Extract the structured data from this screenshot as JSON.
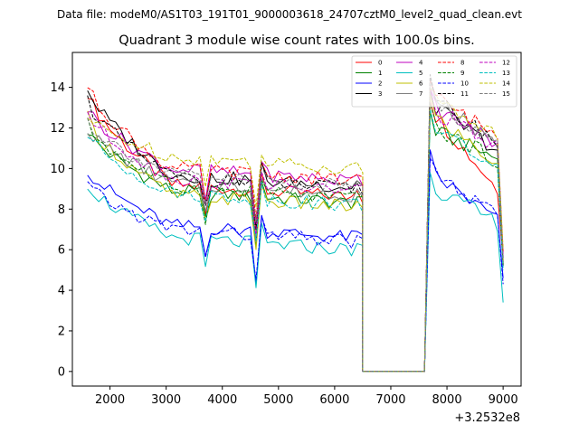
{
  "header": {
    "data_file": "Data file: modeM0/AS1T03_191T01_9000003618_24707cztM0_level2_quad_clean.evt"
  },
  "chart_data": {
    "type": "line",
    "title": "Quadrant 3 module wise count rates with 100.0s bins.",
    "xlabel": "",
    "ylabel": "",
    "x_offset_label": "+3.2532e8",
    "xlim": [
      1330,
      9320
    ],
    "ylim": [
      -0.72,
      15.72
    ],
    "x_ticks": [
      2000,
      3000,
      4000,
      5000,
      6000,
      7000,
      8000,
      9000
    ],
    "x_tick_labels": [
      "2000",
      "3000",
      "4000",
      "5000",
      "6000",
      "7000",
      "8000",
      "9000"
    ],
    "y_ticks": [
      0,
      2,
      4,
      6,
      8,
      10,
      12,
      14
    ],
    "y_tick_labels": [
      "0",
      "2",
      "4",
      "6",
      "8",
      "10",
      "12",
      "14"
    ],
    "legend_location": "upper right",
    "legend_columns": 4,
    "series": [
      {
        "name": "0",
        "color": "#ff0000",
        "dash": "solid",
        "base": 8.6,
        "first": 13.8,
        "post": 12.6,
        "late": 9.0,
        "end": 5.5
      },
      {
        "name": "1",
        "color": "#008000",
        "dash": "solid",
        "base": 8.3,
        "first": 11.9,
        "post": 11.8,
        "late": 10.5,
        "end": 5.3
      },
      {
        "name": "2",
        "color": "#0000ff",
        "dash": "solid",
        "base": 6.6,
        "first": 10.0,
        "post": 9.6,
        "late": 7.5,
        "end": 4.6
      },
      {
        "name": "3",
        "color": "#000000",
        "dash": "solid",
        "base": 9.1,
        "first": 14.0,
        "post": 13.0,
        "late": 10.9,
        "end": 5.2
      },
      {
        "name": "4",
        "color": "#bf00bf",
        "dash": "solid",
        "base": 9.4,
        "first": 13.0,
        "post": 13.0,
        "late": 11.2,
        "end": 5.6
      },
      {
        "name": "5",
        "color": "#00bfbf",
        "dash": "solid",
        "base": 6.0,
        "first": 9.3,
        "post": 9.0,
        "late": 7.3,
        "end": 3.4
      },
      {
        "name": "6",
        "color": "#bfbf00",
        "dash": "solid",
        "base": 8.1,
        "first": 12.5,
        "post": 12.5,
        "late": 10.2,
        "end": 5.4
      },
      {
        "name": "7",
        "color": "#808080",
        "dash": "solid",
        "base": 8.7,
        "first": 12.0,
        "post": 13.5,
        "late": 11.0,
        "end": 5.6
      },
      {
        "name": "8",
        "color": "#ff0000",
        "dash": "dashed",
        "base": 9.4,
        "first": 14.1,
        "post": 13.5,
        "late": 11.6,
        "end": 5.9
      },
      {
        "name": "9",
        "color": "#008000",
        "dash": "dashed",
        "base": 8.5,
        "first": 12.2,
        "post": 12.0,
        "late": 10.4,
        "end": 5.2
      },
      {
        "name": "10",
        "color": "#0000ff",
        "dash": "dashed",
        "base": 6.4,
        "first": 9.2,
        "post": 9.7,
        "late": 7.6,
        "end": 4.3
      },
      {
        "name": "11",
        "color": "#000000",
        "dash": "dashed",
        "base": 9.0,
        "first": 13.4,
        "post": 13.3,
        "late": 11.3,
        "end": 5.4
      },
      {
        "name": "12",
        "color": "#bf00bf",
        "dash": "dashed",
        "base": 8.9,
        "first": 12.8,
        "post": 12.7,
        "late": 11.0,
        "end": 5.7
      },
      {
        "name": "13",
        "color": "#00bfbf",
        "dash": "dashed",
        "base": 8.2,
        "first": 11.7,
        "post": 12.0,
        "late": 10.0,
        "end": 5.0
      },
      {
        "name": "14",
        "color": "#bfbf00",
        "dash": "dashed",
        "base": 10.0,
        "first": 12.5,
        "post": 13.3,
        "late": 11.7,
        "end": 6.0
      },
      {
        "name": "15",
        "color": "#808080",
        "dash": "dashed",
        "base": 9.1,
        "first": 12.4,
        "post": 13.2,
        "late": 11.2,
        "end": 5.4
      }
    ]
  }
}
